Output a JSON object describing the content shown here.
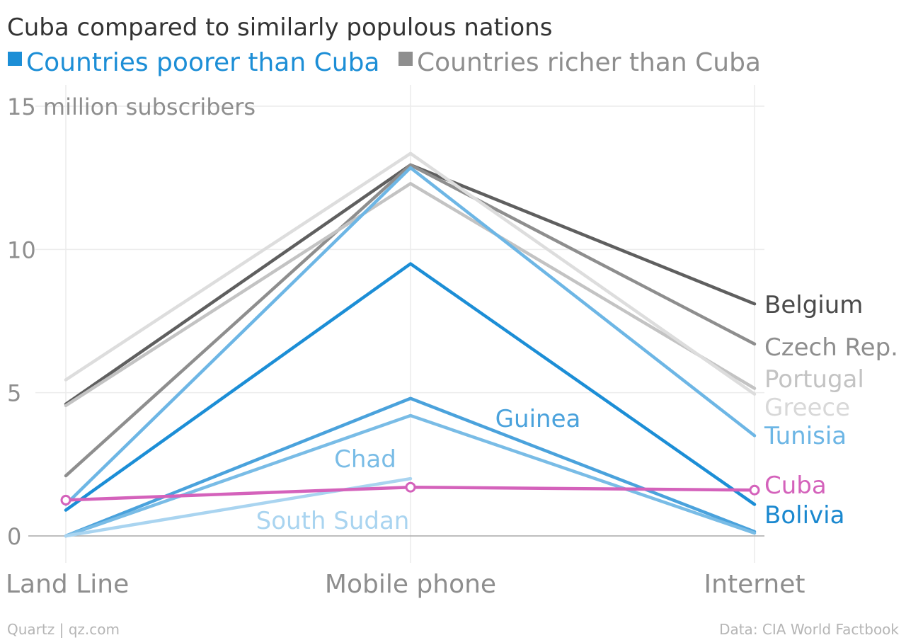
{
  "title": "Cuba compared to similarly populous nations",
  "legend": [
    {
      "label": "Countries poorer than Cuba",
      "color": "#1c8ed6"
    },
    {
      "label": "Countries richer than Cuba",
      "color": "#8e8e8e"
    }
  ],
  "footer": {
    "source_left": "Quartz | qz.com",
    "source_right": "Data: CIA World Factbook"
  },
  "chart_data": {
    "type": "line",
    "categories": [
      "Land Line",
      "Mobile phone",
      "Internet"
    ],
    "ylim": [
      0,
      15
    ],
    "yticks": [
      {
        "value": 0,
        "label": "0"
      },
      {
        "value": 5,
        "label": "5"
      },
      {
        "value": 10,
        "label": "10"
      },
      {
        "value": 15,
        "label": "15 million subscribers"
      }
    ],
    "grid": true,
    "series": [
      {
        "name": "Belgium",
        "group": "richer",
        "color": "#5f5f5f",
        "label_color": "#4a4a4a",
        "values": [
          4.6,
          12.95,
          8.1
        ]
      },
      {
        "name": "Czech Rep.",
        "group": "richer",
        "color": "#8e8e8e",
        "label_color": "#8e8e8e",
        "values": [
          2.1,
          12.95,
          6.7
        ]
      },
      {
        "name": "Portugal",
        "group": "richer",
        "color": "#c3c3c3",
        "label_color": "#c3c3c3",
        "values": [
          4.55,
          12.3,
          5.15
        ]
      },
      {
        "name": "Greece",
        "group": "richer",
        "color": "#dddddd",
        "label_color": "#d8d8d8",
        "values": [
          5.45,
          13.35,
          4.95
        ]
      },
      {
        "name": "Tunisia",
        "group": "poorer",
        "color": "#6db6e5",
        "label_color": "#6db6e5",
        "values": [
          1.1,
          12.85,
          3.5
        ]
      },
      {
        "name": "Bolivia",
        "group": "poorer",
        "color": "#1c8ed6",
        "label_color": "#1a88cf",
        "values": [
          0.9,
          9.5,
          1.1
        ]
      },
      {
        "name": "Guinea",
        "group": "poorer",
        "color": "#4aa2dc",
        "label_color": "#4aa2dc",
        "values": [
          0.0,
          4.8,
          0.15
        ]
      },
      {
        "name": "Chad",
        "group": "poorer",
        "color": "#79bce6",
        "label_color": "#79bce6",
        "values": [
          0.0,
          4.2,
          0.1
        ]
      },
      {
        "name": "South Sudan",
        "group": "poorer",
        "color": "#a9d4f0",
        "label_color": "#a9d4f0",
        "values": [
          0.0,
          2.0,
          null
        ]
      },
      {
        "name": "Cuba",
        "group": "cuba",
        "color": "#d462bb",
        "label_color": "#d462bb",
        "values": [
          1.25,
          1.7,
          1.6
        ]
      }
    ]
  }
}
